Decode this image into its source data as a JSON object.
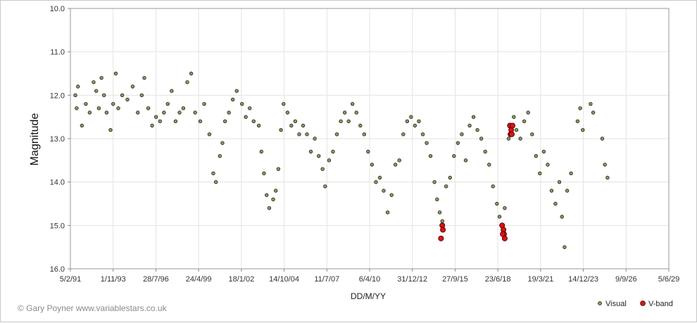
{
  "chart_data": {
    "type": "scatter",
    "xlabel": "DD/M/YY",
    "ylabel": "Magnitude",
    "y_inverted": true,
    "ylim": [
      10.0,
      16.0
    ],
    "y_ticks": [
      "10.0",
      "11.0",
      "12.0",
      "13.0",
      "14.0",
      "15.0",
      "16.0"
    ],
    "xlim": [
      "5/2/91",
      "5/6/29"
    ],
    "x_ticks": [
      "5/2/91",
      "1/11/93",
      "28/7/96",
      "24/4/99",
      "18/1/02",
      "14/10/04",
      "11/7/07",
      "6/4/10",
      "31/12/12",
      "27/9/15",
      "23/6/18",
      "19/3/21",
      "14/12/23",
      "9/9/26",
      "5/6/29"
    ],
    "grid": true,
    "legend_position": "bottom-right",
    "credit": "© Gary Poyner www.variablestars.co.uk",
    "colors": {
      "visual": "#8a9a5b",
      "vband": "#dd1111",
      "grid": "#e3e3e3"
    },
    "series": [
      {
        "name": "Visual",
        "marker": "small-circle",
        "color": "#8a9a5b",
        "points": [
          [
            "1/6/91",
            12.0
          ],
          [
            "1/7/91",
            12.3
          ],
          [
            "1/8/91",
            11.8
          ],
          [
            "1/11/91",
            12.7
          ],
          [
            "1/2/92",
            12.2
          ],
          [
            "1/5/92",
            12.4
          ],
          [
            "1/8/92",
            11.7
          ],
          [
            "1/10/92",
            11.9
          ],
          [
            "1/12/92",
            12.3
          ],
          [
            "1/2/93",
            11.6
          ],
          [
            "1/4/93",
            12.0
          ],
          [
            "1/6/93",
            12.4
          ],
          [
            "1/9/93",
            12.8
          ],
          [
            "1/11/93",
            12.2
          ],
          [
            "1/1/94",
            11.5
          ],
          [
            "1/3/94",
            12.3
          ],
          [
            "1/6/94",
            12.0
          ],
          [
            "1/10/94",
            12.1
          ],
          [
            "1/2/95",
            11.8
          ],
          [
            "1/6/95",
            12.4
          ],
          [
            "1/9/95",
            12.0
          ],
          [
            "1/11/95",
            11.6
          ],
          [
            "1/2/96",
            12.3
          ],
          [
            "1/5/96",
            12.7
          ],
          [
            "1/8/96",
            12.5
          ],
          [
            "1/11/96",
            12.6
          ],
          [
            "1/2/97",
            12.4
          ],
          [
            "1/5/97",
            12.2
          ],
          [
            "1/8/97",
            11.9
          ],
          [
            "1/11/97",
            12.6
          ],
          [
            "1/2/98",
            12.4
          ],
          [
            "1/5/98",
            12.3
          ],
          [
            "1/8/98",
            11.7
          ],
          [
            "1/11/98",
            11.5
          ],
          [
            "1/2/99",
            12.4
          ],
          [
            "1/6/99",
            12.6
          ],
          [
            "1/9/99",
            12.2
          ],
          [
            "1/1/00",
            12.9
          ],
          [
            "1/4/00",
            13.8
          ],
          [
            "1/6/00",
            14.0
          ],
          [
            "1/9/00",
            13.4
          ],
          [
            "1/11/00",
            13.1
          ],
          [
            "1/1/01",
            12.6
          ],
          [
            "1/4/01",
            12.4
          ],
          [
            "1/7/01",
            12.1
          ],
          [
            "1/10/01",
            11.9
          ],
          [
            "1/2/02",
            12.2
          ],
          [
            "1/5/02",
            12.5
          ],
          [
            "1/8/02",
            12.3
          ],
          [
            "1/11/02",
            12.6
          ],
          [
            "1/3/03",
            12.7
          ],
          [
            "1/5/03",
            13.3
          ],
          [
            "1/7/03",
            13.8
          ],
          [
            "1/9/03",
            14.3
          ],
          [
            "1/11/03",
            14.6
          ],
          [
            "1/2/04",
            14.4
          ],
          [
            "1/4/04",
            14.2
          ],
          [
            "1/6/04",
            13.7
          ],
          [
            "1/8/04",
            12.8
          ],
          [
            "1/10/04",
            12.2
          ],
          [
            "1/1/05",
            12.4
          ],
          [
            "1/4/05",
            12.7
          ],
          [
            "1/7/05",
            12.6
          ],
          [
            "1/10/05",
            12.9
          ],
          [
            "1/1/06",
            12.7
          ],
          [
            "1/4/06",
            12.9
          ],
          [
            "1/7/06",
            13.3
          ],
          [
            "1/10/06",
            13.0
          ],
          [
            "1/1/07",
            13.4
          ],
          [
            "1/4/07",
            13.7
          ],
          [
            "1/6/07",
            14.1
          ],
          [
            "1/9/07",
            13.5
          ],
          [
            "1/12/07",
            13.3
          ],
          [
            "1/3/08",
            12.9
          ],
          [
            "1/6/08",
            12.6
          ],
          [
            "1/9/08",
            12.4
          ],
          [
            "1/12/08",
            12.6
          ],
          [
            "1/3/09",
            12.2
          ],
          [
            "1/6/09",
            12.4
          ],
          [
            "1/9/09",
            12.7
          ],
          [
            "1/12/09",
            12.9
          ],
          [
            "1/3/10",
            13.3
          ],
          [
            "1/6/10",
            13.6
          ],
          [
            "1/9/10",
            14.0
          ],
          [
            "1/12/10",
            13.9
          ],
          [
            "1/3/11",
            14.2
          ],
          [
            "1/6/11",
            14.7
          ],
          [
            "1/9/11",
            14.3
          ],
          [
            "1/12/11",
            13.6
          ],
          [
            "1/3/12",
            13.5
          ],
          [
            "1/6/12",
            12.9
          ],
          [
            "1/9/12",
            12.6
          ],
          [
            "1/12/12",
            12.5
          ],
          [
            "1/3/13",
            12.7
          ],
          [
            "1/6/13",
            12.6
          ],
          [
            "1/9/13",
            12.9
          ],
          [
            "1/12/13",
            13.1
          ],
          [
            "1/3/14",
            13.4
          ],
          [
            "1/6/14",
            14.0
          ],
          [
            "1/8/14",
            14.4
          ],
          [
            "1/10/14",
            14.7
          ],
          [
            "1/12/14",
            14.9
          ],
          [
            "1/3/15",
            14.1
          ],
          [
            "1/6/15",
            13.9
          ],
          [
            "1/9/15",
            13.4
          ],
          [
            "1/12/15",
            13.1
          ],
          [
            "1/3/16",
            12.9
          ],
          [
            "1/6/16",
            13.5
          ],
          [
            "1/9/16",
            12.7
          ],
          [
            "1/12/16",
            12.5
          ],
          [
            "1/3/17",
            12.8
          ],
          [
            "1/6/17",
            13.0
          ],
          [
            "1/9/17",
            13.3
          ],
          [
            "1/12/17",
            13.6
          ],
          [
            "1/3/18",
            14.1
          ],
          [
            "1/6/18",
            14.5
          ],
          [
            "1/8/18",
            14.8
          ],
          [
            "1/10/18",
            15.0
          ],
          [
            "1/12/18",
            14.6
          ],
          [
            "1/3/19",
            13.0
          ],
          [
            "1/5/19",
            12.7
          ],
          [
            "1/7/19",
            12.5
          ],
          [
            "1/9/19",
            12.8
          ],
          [
            "1/12/19",
            13.0
          ],
          [
            "1/3/20",
            12.6
          ],
          [
            "1/6/20",
            12.4
          ],
          [
            "1/9/20",
            12.9
          ],
          [
            "1/12/20",
            13.4
          ],
          [
            "1/3/21",
            13.8
          ],
          [
            "1/6/21",
            13.3
          ],
          [
            "1/9/21",
            13.6
          ],
          [
            "1/12/21",
            14.2
          ],
          [
            "1/3/22",
            14.5
          ],
          [
            "1/6/22",
            14.0
          ],
          [
            "1/8/22",
            14.8
          ],
          [
            "1/10/22",
            15.5
          ],
          [
            "1/12/22",
            14.2
          ],
          [
            "1/3/23",
            13.8
          ],
          [
            "1/8/23",
            12.6
          ],
          [
            "1/10/23",
            12.3
          ],
          [
            "1/12/23",
            12.8
          ],
          [
            "1/6/24",
            12.2
          ],
          [
            "1/8/24",
            12.4
          ],
          [
            "1/3/25",
            13.0
          ],
          [
            "1/5/25",
            13.6
          ],
          [
            "1/7/25",
            13.9
          ]
        ]
      },
      {
        "name": "V-band",
        "marker": "circle",
        "color": "#dd1111",
        "points": [
          [
            "1/12/14",
            15.0
          ],
          [
            "15/12/14",
            15.1
          ],
          [
            "1/11/14",
            15.3
          ],
          [
            "1/10/18",
            15.0
          ],
          [
            "1/11/18",
            15.1
          ],
          [
            "15/11/18",
            15.2
          ],
          [
            "1/12/18",
            15.3
          ],
          [
            "15/10/18",
            15.2
          ],
          [
            "1/4/19",
            12.7
          ],
          [
            "15/4/19",
            12.9
          ],
          [
            "1/5/19",
            12.8
          ],
          [
            "15/5/19",
            12.9
          ],
          [
            "1/6/19",
            12.7
          ]
        ]
      }
    ]
  }
}
